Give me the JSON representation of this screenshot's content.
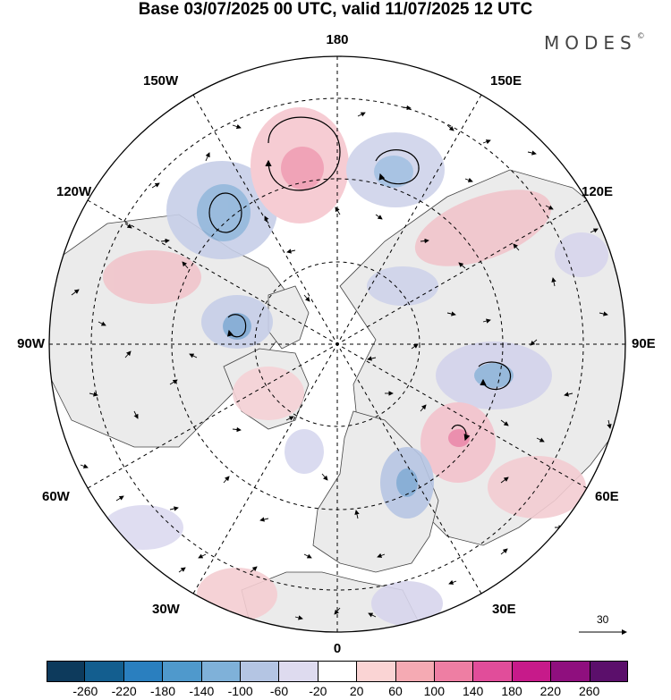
{
  "title": "Base 03/07/2025 00 UTC, valid 11/07/2025 12 UTC",
  "logo": {
    "text": "MODES",
    "mark": "©"
  },
  "longitude_labels": {
    "top": "180",
    "bottom": "0",
    "left": "90W",
    "right": "90E",
    "upper_left_1": "150W",
    "upper_left_2": "120W",
    "upper_right_1": "150E",
    "upper_right_2": "120E",
    "lower_left_1": "60W",
    "lower_left_2": "30W",
    "lower_right_1": "60E",
    "lower_right_2": "30E"
  },
  "reference_vector": {
    "label": "30"
  },
  "colorbar": {
    "colors": [
      "#0d3a5c",
      "#135e8f",
      "#2a7fbf",
      "#4f99cc",
      "#7fb1d9",
      "#b4c5e3",
      "#dedbef",
      "#ffffff",
      "#fad4d4",
      "#f5aab3",
      "#ee7ea3",
      "#e14d9a",
      "#c71a8a",
      "#8f0f7e",
      "#5b0f6b"
    ],
    "ticks": [
      "-260",
      "-220",
      "-180",
      "-140",
      "-100",
      "-60",
      "-20",
      "20",
      "60",
      "100",
      "140",
      "180",
      "220",
      "260"
    ]
  },
  "anomaly_features": [
    {
      "sign": "negative",
      "level": 2
    },
    {
      "sign": "positive",
      "level": 2
    },
    {
      "sign": "negative",
      "level": 2
    },
    {
      "sign": "negative",
      "level": 2
    },
    {
      "sign": "negative",
      "level": 2
    },
    {
      "sign": "positive",
      "level": 2
    },
    {
      "sign": "positive",
      "level": 1
    },
    {
      "sign": "negative",
      "level": 2
    },
    {
      "sign": "positive",
      "level": 1
    },
    {
      "sign": "negative",
      "level": 1
    },
    {
      "sign": "positive",
      "level": 1
    }
  ],
  "colors": {
    "land_gray": "#ebebeb",
    "grid_line": "#000000"
  }
}
